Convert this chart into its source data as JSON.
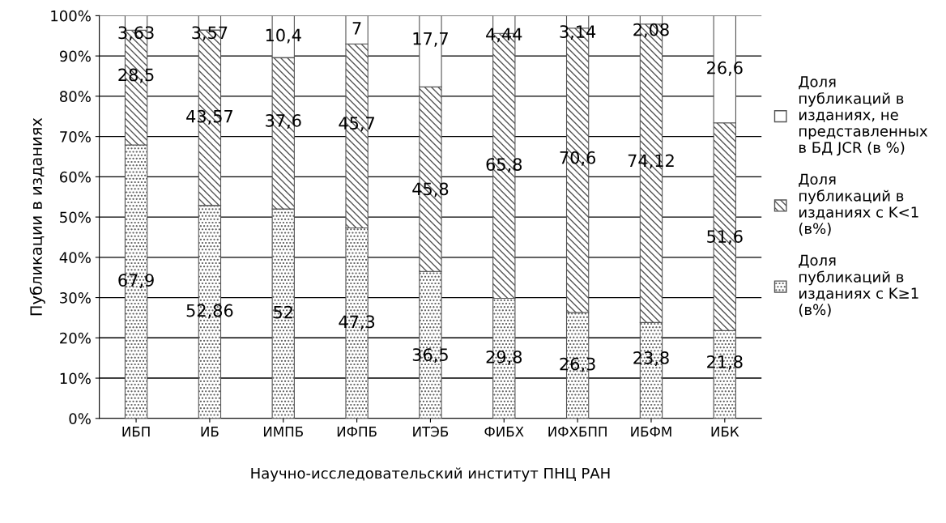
{
  "chart_data": {
    "type": "bar",
    "stacked": true,
    "ylabel": "Публикации в изданиях",
    "xlabel": "Научно-исследовательский институт ПНЦ РАН",
    "categories": [
      "ИБП",
      "ИБ",
      "ИМПБ",
      "ИФПБ",
      "ИТЭБ",
      "ФИБХ",
      "ИФХБПП",
      "ИБФМ",
      "ИБК"
    ],
    "series": [
      {
        "name": "Доля\nпубликаций в\nизданиях с K≥1\n(в%)",
        "color": "#555555",
        "values": [
          67.9,
          52.86,
          52,
          47.3,
          36.5,
          29.8,
          26.3,
          23.8,
          21.8
        ],
        "value_labels": [
          "67,9",
          "52,86",
          "52",
          "47,3",
          "36,5",
          "29,8",
          "26,3",
          "23,8",
          "21,8"
        ]
      },
      {
        "name": "Доля\nпубликаций в\nизданиях с K<1\n(в%)",
        "color": "#555555",
        "values": [
          28.5,
          43.57,
          37.6,
          45.7,
          45.8,
          65.8,
          70.6,
          74.12,
          51.6
        ],
        "value_labels": [
          "28,5",
          "43,57",
          "37,6",
          "45,7",
          "45,8",
          "65,8",
          "70,6",
          "74,12",
          "51,6"
        ]
      },
      {
        "name": "Доля\nпубликаций в\nизданиях, не\nпредставленных\nв БД JCR (в %)",
        "color": "#555555",
        "values": [
          3.63,
          3.57,
          10.4,
          7,
          17.7,
          4.44,
          3.14,
          2.08,
          26.6
        ],
        "value_labels": [
          "3,63",
          "3,57",
          "10,4",
          "7",
          "17,7",
          "4,44",
          "3,14",
          "2,08",
          "26,6"
        ]
      }
    ],
    "ylim": [
      0,
      100
    ],
    "yticks": [
      {
        "value": 0,
        "label": "0%"
      },
      {
        "value": 10,
        "label": "10%"
      },
      {
        "value": 20,
        "label": "20%"
      },
      {
        "value": 30,
        "label": "30%"
      },
      {
        "value": 40,
        "label": "40%"
      },
      {
        "value": 50,
        "label": "50%"
      },
      {
        "value": 60,
        "label": "60%"
      },
      {
        "value": 70,
        "label": "70%"
      },
      {
        "value": 80,
        "label": "80%"
      },
      {
        "value": 90,
        "label": "90%"
      },
      {
        "value": 100,
        "label": "100%"
      }
    ],
    "grid": "y",
    "legend": "right"
  }
}
